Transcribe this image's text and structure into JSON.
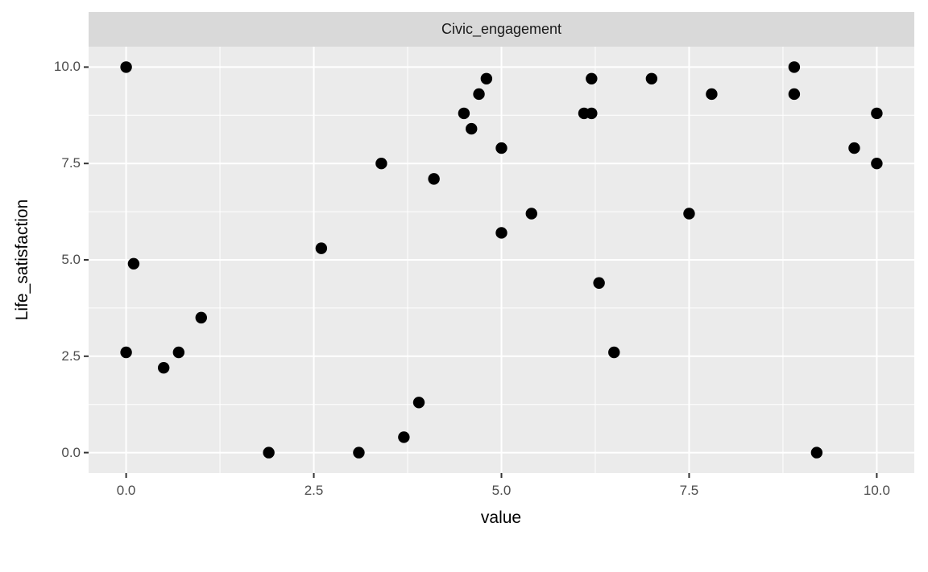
{
  "figure": {
    "facet_title": "Civic_engagement",
    "x_axis_title": "value",
    "y_axis_title": "Life_satisfaction"
  },
  "colors": {
    "panel_bg": "#EBEBEB",
    "strip_bg": "#D9D9D9",
    "grid_major": "#FFFFFF",
    "grid_minor": "#FFFFFF",
    "point": "#000000",
    "tick_mark": "#333333",
    "tick_label": "#4D4D4D",
    "axis_title": "#000000"
  },
  "chart_data": {
    "type": "scatter",
    "title": "Civic_engagement",
    "xlabel": "value",
    "ylabel": "Life_satisfaction",
    "xlim": [
      -0.5,
      10.5
    ],
    "ylim": [
      -0.53,
      10.53
    ],
    "grid": true,
    "legend": "none",
    "x_major_ticks": [
      0,
      2.5,
      5,
      7.5,
      10
    ],
    "x_tick_labels": [
      "0.0",
      "2.5",
      "5.0",
      "7.5",
      "10.0"
    ],
    "x_minor_ticks": [
      1.25,
      3.75,
      6.25,
      8.75
    ],
    "y_major_ticks": [
      0,
      2.5,
      5,
      7.5,
      10
    ],
    "y_tick_labels": [
      "0.0",
      "2.5",
      "5.0",
      "7.5",
      "10.0"
    ],
    "y_minor_ticks": [
      1.25,
      3.75,
      6.25,
      8.75
    ],
    "points": [
      [
        0.0,
        10.0
      ],
      [
        0.1,
        4.9
      ],
      [
        0.0,
        2.6
      ],
      [
        0.5,
        2.2
      ],
      [
        0.7,
        2.6
      ],
      [
        1.0,
        3.5
      ],
      [
        1.9,
        0.0
      ],
      [
        2.6,
        5.3
      ],
      [
        3.1,
        0.0
      ],
      [
        3.4,
        7.5
      ],
      [
        3.7,
        0.4
      ],
      [
        3.9,
        1.3
      ],
      [
        4.1,
        7.1
      ],
      [
        4.5,
        8.8
      ],
      [
        4.6,
        8.4
      ],
      [
        4.7,
        9.3
      ],
      [
        4.8,
        9.7
      ],
      [
        5.0,
        7.9
      ],
      [
        5.0,
        5.7
      ],
      [
        5.4,
        6.2
      ],
      [
        6.1,
        8.8
      ],
      [
        6.2,
        8.8
      ],
      [
        6.2,
        9.7
      ],
      [
        6.3,
        4.4
      ],
      [
        6.5,
        2.6
      ],
      [
        7.0,
        9.7
      ],
      [
        7.5,
        6.2
      ],
      [
        7.8,
        9.3
      ],
      [
        8.9,
        10.0
      ],
      [
        8.9,
        9.3
      ],
      [
        9.2,
        0.0
      ],
      [
        9.7,
        7.9
      ],
      [
        10.0,
        8.8
      ],
      [
        10.0,
        7.5
      ]
    ]
  }
}
